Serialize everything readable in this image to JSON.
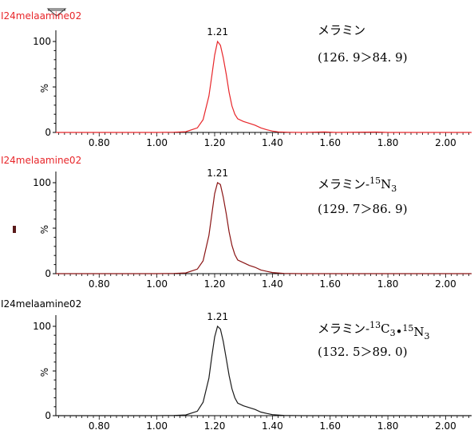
{
  "chart_data": [
    {
      "type": "line",
      "file_label": "I24melaamine02",
      "file_label_color": "#e8262a",
      "trace_color": "#e8262a",
      "compound_name": "メラミン",
      "compound_isotope": [],
      "transition": "(126. 9＞84. 9)",
      "peak_label": "1.21",
      "peak_x": 1.21,
      "xlim": [
        0.65,
        2.09
      ],
      "ylim": [
        0,
        100
      ],
      "x_ticks": [
        "0.80",
        "1.00",
        "1.20",
        "1.40",
        "1.60",
        "1.80",
        "2.00"
      ],
      "y_ticks": [
        "0",
        "100"
      ],
      "ylabel": "%",
      "points": [
        [
          0.65,
          0
        ],
        [
          1.0,
          0
        ],
        [
          1.06,
          0.3
        ],
        [
          1.1,
          0.8
        ],
        [
          1.14,
          5
        ],
        [
          1.16,
          14
        ],
        [
          1.18,
          40
        ],
        [
          1.19,
          62
        ],
        [
          1.2,
          85
        ],
        [
          1.21,
          100
        ],
        [
          1.22,
          96
        ],
        [
          1.23,
          82
        ],
        [
          1.24,
          64
        ],
        [
          1.25,
          44
        ],
        [
          1.26,
          29
        ],
        [
          1.27,
          20
        ],
        [
          1.28,
          15
        ],
        [
          1.3,
          12
        ],
        [
          1.32,
          10
        ],
        [
          1.34,
          8
        ],
        [
          1.36,
          5
        ],
        [
          1.38,
          3
        ],
        [
          1.4,
          1.5
        ],
        [
          1.42,
          0.6
        ],
        [
          1.46,
          0.2
        ],
        [
          1.5,
          0
        ],
        [
          1.58,
          0.5
        ],
        [
          1.62,
          0
        ],
        [
          1.76,
          0.4
        ],
        [
          1.8,
          0
        ],
        [
          2.09,
          0
        ]
      ]
    },
    {
      "type": "line",
      "file_label": "I24melaamine02",
      "file_label_color": "#e8262a",
      "trace_color": "#8a1414",
      "compound_name": "メラミン-",
      "compound_isotope": [
        {
          "sup": "15",
          "base": "N",
          "sub": "3"
        }
      ],
      "transition": "(129. 7＞86. 9)",
      "peak_label": "1.21",
      "peak_x": 1.21,
      "xlim": [
        0.65,
        2.09
      ],
      "ylim": [
        0,
        100
      ],
      "x_ticks": [
        "0.80",
        "1.00",
        "1.20",
        "1.40",
        "1.60",
        "1.80",
        "2.00"
      ],
      "y_ticks": [
        "0",
        "100"
      ],
      "ylabel": "%",
      "points": [
        [
          0.65,
          0
        ],
        [
          1.0,
          0
        ],
        [
          1.06,
          0.3
        ],
        [
          1.1,
          0.8
        ],
        [
          1.14,
          5
        ],
        [
          1.16,
          14
        ],
        [
          1.18,
          42
        ],
        [
          1.19,
          65
        ],
        [
          1.2,
          88
        ],
        [
          1.21,
          100
        ],
        [
          1.22,
          98
        ],
        [
          1.23,
          84
        ],
        [
          1.24,
          66
        ],
        [
          1.25,
          46
        ],
        [
          1.26,
          31
        ],
        [
          1.27,
          21
        ],
        [
          1.28,
          15
        ],
        [
          1.3,
          12
        ],
        [
          1.32,
          9
        ],
        [
          1.34,
          7
        ],
        [
          1.36,
          4
        ],
        [
          1.38,
          2.5
        ],
        [
          1.4,
          1.2
        ],
        [
          1.44,
          0.3
        ],
        [
          1.5,
          0
        ],
        [
          2.09,
          0
        ]
      ]
    },
    {
      "type": "line",
      "file_label": "I24melaamine02",
      "file_label_color": "#000000",
      "trace_color": "#1a1a1a",
      "compound_name": "メラミン-",
      "compound_isotope": [
        {
          "sup": "13",
          "base": "C",
          "sub": "3"
        },
        {
          "sep": "•"
        },
        {
          "sup": "15",
          "base": "N",
          "sub": "3"
        }
      ],
      "transition": "(132. 5＞89. 0)",
      "peak_label": "1.21",
      "peak_x": 1.21,
      "xlim": [
        0.65,
        2.09
      ],
      "ylim": [
        0,
        100
      ],
      "x_ticks": [
        "0.80",
        "1.00",
        "1.20",
        "1.40",
        "1.60",
        "1.80",
        "2.00"
      ],
      "y_ticks": [
        "0",
        "100"
      ],
      "ylabel": "%",
      "points": [
        [
          0.65,
          0
        ],
        [
          1.0,
          0
        ],
        [
          1.06,
          0.3
        ],
        [
          1.1,
          0.8
        ],
        [
          1.14,
          5
        ],
        [
          1.16,
          15
        ],
        [
          1.18,
          42
        ],
        [
          1.19,
          66
        ],
        [
          1.2,
          88
        ],
        [
          1.21,
          100
        ],
        [
          1.22,
          97
        ],
        [
          1.23,
          83
        ],
        [
          1.24,
          64
        ],
        [
          1.25,
          45
        ],
        [
          1.26,
          30
        ],
        [
          1.27,
          20
        ],
        [
          1.28,
          14
        ],
        [
          1.3,
          11
        ],
        [
          1.32,
          9
        ],
        [
          1.34,
          7
        ],
        [
          1.36,
          4
        ],
        [
          1.38,
          2.5
        ],
        [
          1.4,
          1.2
        ],
        [
          1.44,
          0.3
        ],
        [
          1.5,
          0
        ],
        [
          2.09,
          0
        ]
      ]
    }
  ]
}
